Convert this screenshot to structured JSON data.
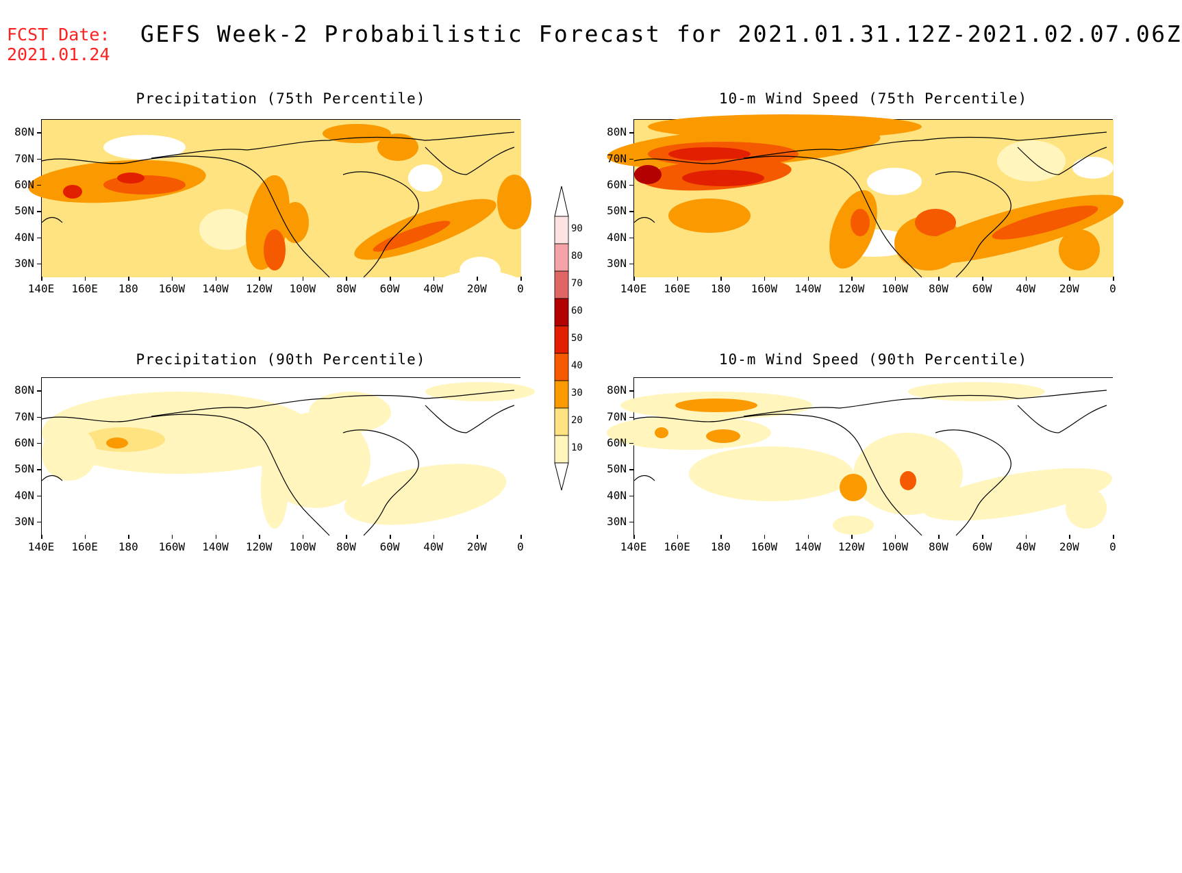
{
  "header": {
    "fcst_label": "FCST Date:",
    "fcst_date": "2021.01.24",
    "title": "GEFS Week-2 Probabilistic Forecast for 2021.01.31.12Z-2021.02.07.06Z"
  },
  "panels": [
    {
      "id": "precip-75",
      "title": "Precipitation (75th Percentile)"
    },
    {
      "id": "wind-75",
      "title": "10-m Wind Speed (75th Percentile)"
    },
    {
      "id": "precip-90",
      "title": "Precipitation (90th Percentile)"
    },
    {
      "id": "wind-90",
      "title": "10-m Wind Speed (90th Percentile)"
    }
  ],
  "axes": {
    "lat_labels": [
      "80N",
      "70N",
      "60N",
      "50N",
      "40N",
      "30N"
    ],
    "lon_labels": [
      "140E",
      "160E",
      "180",
      "160W",
      "140W",
      "120W",
      "100W",
      "80W",
      "60W",
      "40W",
      "20W",
      "0"
    ],
    "lat_range": [
      25,
      85
    ],
    "lon_range": [
      140,
      360
    ]
  },
  "colorbar": {
    "levels": [
      "90",
      "80",
      "70",
      "60",
      "50",
      "40",
      "30",
      "20",
      "10"
    ],
    "colors": [
      "#fde2e2",
      "#f4a3a8",
      "#e06666",
      "#b30000",
      "#e21f00",
      "#f55a00",
      "#fa9a00",
      "#ffe380",
      "#fff5bd"
    ]
  }
}
